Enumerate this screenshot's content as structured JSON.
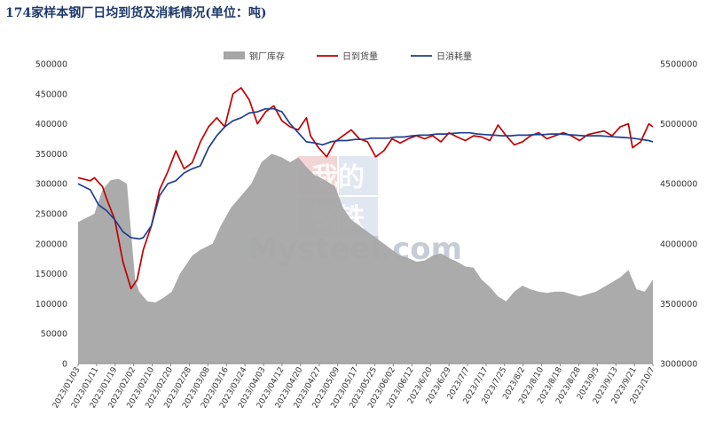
{
  "chart_data": {
    "type": "line",
    "title": "174家样本钢厂日均到货及消耗情况(单位：吨)",
    "watermark": [
      "我的",
      "钢铁",
      "Mysteel.com"
    ],
    "colors": {
      "inventory": "#a6a6a6",
      "arrival": "#c00000",
      "consumption": "#1f3f8f"
    },
    "y_left": {
      "min": 0,
      "max": 500000,
      "ticks": [
        "0",
        "50000",
        "100000",
        "150000",
        "200000",
        "250000",
        "300000",
        "350000",
        "400000",
        "450000",
        "500000"
      ]
    },
    "y_right": {
      "min": 3000000,
      "max": 5500000,
      "ticks": [
        "3000000",
        "3500000",
        "4000000",
        "4500000",
        "5000000",
        "5500000"
      ]
    },
    "x_range": [
      0,
      282
    ],
    "x_tick_labels": [
      "2023/01/03",
      "2023/01/11",
      "2023/01/19",
      "2023/02/02",
      "2023/02/10",
      "2023/02/20",
      "2023/02/28",
      "2023/03/08",
      "2023/03/16",
      "2023/03/24",
      "2023/04/03",
      "2023/04/12",
      "2023/04/20",
      "2023/04/27",
      "2023/05/09",
      "2023/05/17",
      "2023/05/25",
      "2023/06/02",
      "2023/06/12",
      "2023/6/20",
      "2023/6/29",
      "2023/7/7",
      "2023/7/17",
      "2023/7/25",
      "2023/8/2",
      "2023/8/10",
      "2023/8/18",
      "2023/8/28",
      "2023/9/5",
      "2023/9/13",
      "2023/9/21",
      "2023/10/7"
    ],
    "series": [
      {
        "name": "钢厂库存",
        "type": "area",
        "axis": "right",
        "x": [
          0,
          8,
          12,
          16,
          20,
          24,
          28,
          30,
          34,
          38,
          42,
          46,
          50,
          56,
          60,
          66,
          70,
          75,
          80,
          85,
          90,
          95,
          100,
          104,
          108,
          112,
          116,
          118,
          122,
          126,
          130,
          134,
          138,
          142,
          146,
          150,
          154,
          158,
          162,
          166,
          170,
          174,
          178,
          182,
          186,
          190,
          194,
          198,
          202,
          206,
          210,
          214,
          218,
          222,
          226,
          230,
          234,
          238,
          242,
          246,
          250,
          254,
          258,
          262,
          266,
          270,
          274,
          278,
          282
        ],
        "y": [
          4180000,
          4250000,
          4450000,
          4530000,
          4540000,
          4500000,
          3700000,
          3600000,
          3520000,
          3510000,
          3550000,
          3600000,
          3750000,
          3900000,
          3950000,
          4000000,
          4150000,
          4300000,
          4400000,
          4500000,
          4680000,
          4750000,
          4720000,
          4680000,
          4720000,
          4640000,
          4570000,
          4560000,
          4520000,
          4480000,
          4300000,
          4200000,
          4150000,
          4100000,
          4050000,
          4000000,
          3950000,
          3900000,
          3880000,
          3850000,
          3860000,
          3900000,
          3920000,
          3880000,
          3850000,
          3810000,
          3800000,
          3700000,
          3640000,
          3560000,
          3520000,
          3600000,
          3650000,
          3620000,
          3600000,
          3590000,
          3600000,
          3600000,
          3580000,
          3560000,
          3580000,
          3600000,
          3640000,
          3680000,
          3720000,
          3780000,
          3620000,
          3600000,
          3700000
        ]
      },
      {
        "name": "日到货量",
        "type": "line",
        "axis": "left",
        "x": [
          0,
          6,
          8,
          12,
          14,
          18,
          22,
          26,
          29,
          32,
          36,
          40,
          44,
          48,
          52,
          56,
          60,
          64,
          68,
          72,
          76,
          80,
          84,
          88,
          92,
          96,
          100,
          104,
          108,
          112,
          114,
          118,
          122,
          126,
          130,
          134,
          138,
          142,
          146,
          150,
          154,
          158,
          162,
          166,
          170,
          174,
          178,
          182,
          186,
          190,
          194,
          198,
          202,
          206,
          210,
          214,
          218,
          222,
          226,
          230,
          234,
          238,
          242,
          246,
          250,
          254,
          258,
          262,
          266,
          270,
          272,
          276,
          280,
          282
        ],
        "y": [
          310000,
          305000,
          310000,
          295000,
          275000,
          240000,
          170000,
          125000,
          140000,
          190000,
          230000,
          290000,
          320000,
          355000,
          325000,
          335000,
          370000,
          395000,
          410000,
          395000,
          450000,
          460000,
          440000,
          400000,
          420000,
          430000,
          405000,
          395000,
          390000,
          410000,
          380000,
          360000,
          345000,
          370000,
          380000,
          390000,
          375000,
          370000,
          345000,
          355000,
          375000,
          368000,
          375000,
          380000,
          375000,
          380000,
          370000,
          385000,
          378000,
          372000,
          380000,
          378000,
          372000,
          398000,
          380000,
          365000,
          370000,
          380000,
          385000,
          375000,
          380000,
          385000,
          380000,
          372000,
          382000,
          385000,
          388000,
          380000,
          395000,
          400000,
          360000,
          370000,
          400000,
          395000
        ]
      },
      {
        "name": "日消耗量",
        "type": "line",
        "axis": "left",
        "x": [
          0,
          6,
          10,
          14,
          18,
          22,
          26,
          30,
          32,
          36,
          40,
          44,
          48,
          52,
          56,
          60,
          64,
          68,
          72,
          76,
          80,
          84,
          88,
          92,
          96,
          100,
          104,
          108,
          112,
          116,
          120,
          124,
          128,
          132,
          136,
          140,
          144,
          148,
          152,
          156,
          160,
          164,
          168,
          172,
          176,
          180,
          184,
          188,
          192,
          196,
          200,
          204,
          208,
          212,
          216,
          220,
          224,
          228,
          232,
          236,
          240,
          244,
          248,
          252,
          256,
          260,
          264,
          268,
          272,
          276,
          280,
          282
        ],
        "y": [
          300000,
          290000,
          265000,
          255000,
          240000,
          220000,
          210000,
          208000,
          210000,
          230000,
          280000,
          300000,
          305000,
          318000,
          325000,
          330000,
          360000,
          380000,
          395000,
          405000,
          410000,
          418000,
          420000,
          425000,
          425000,
          420000,
          400000,
          385000,
          370000,
          368000,
          365000,
          370000,
          372000,
          372000,
          374000,
          374000,
          376000,
          376000,
          376000,
          378000,
          378000,
          380000,
          381000,
          381000,
          383000,
          383000,
          384000,
          385000,
          385000,
          383000,
          382000,
          381000,
          380000,
          380000,
          381000,
          381000,
          382000,
          382000,
          383000,
          383000,
          382000,
          381000,
          380000,
          380000,
          380000,
          379000,
          378000,
          377000,
          376000,
          374000,
          372000,
          370000
        ]
      }
    ]
  }
}
